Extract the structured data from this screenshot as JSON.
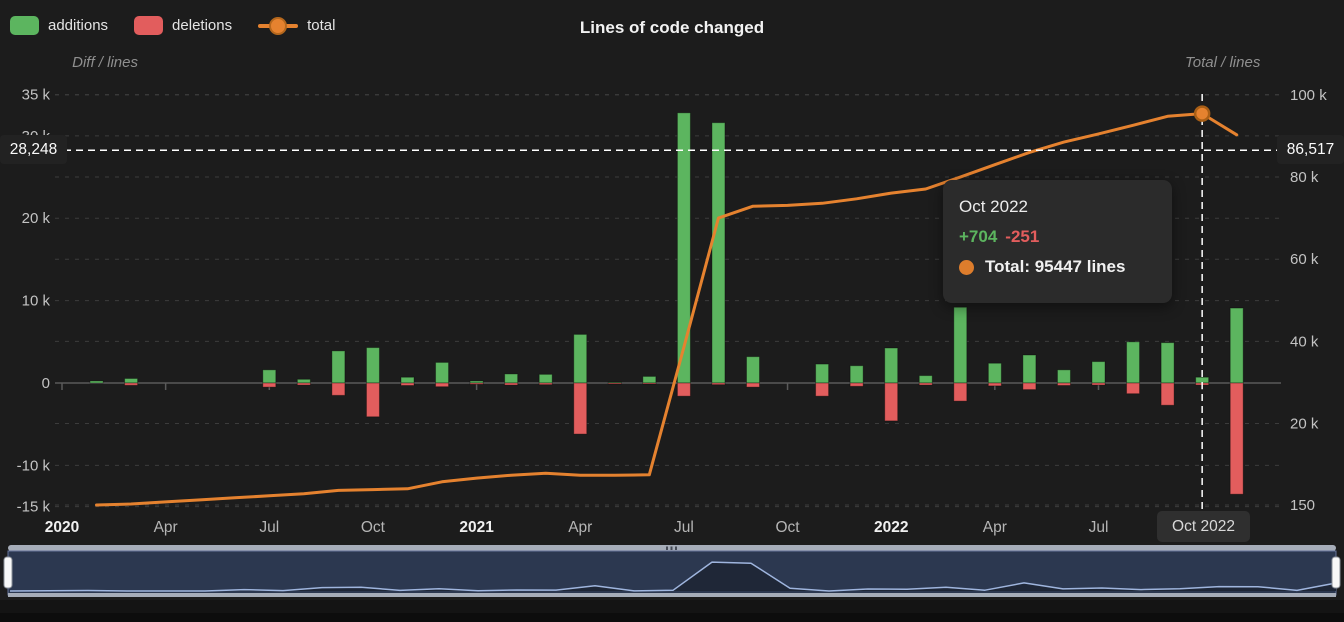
{
  "header": {
    "title": "Lines of code changed",
    "legend": [
      {
        "label": "additions",
        "icon": "green-swatch",
        "color": "#5cb55f"
      },
      {
        "label": "deletions",
        "icon": "red-swatch",
        "color": "#e25d5d"
      },
      {
        "label": "total",
        "icon": "orange-line-dot",
        "color": "#e5822f"
      }
    ]
  },
  "axes": {
    "left": {
      "title": "Diff / lines",
      "ticks": [
        {
          "value": 35000,
          "label": "35 k"
        },
        {
          "value": 30000,
          "label": "30 k"
        },
        {
          "value": 20000,
          "label": "20 k"
        },
        {
          "value": 10000,
          "label": "10 k"
        },
        {
          "value": 0,
          "label": "0"
        },
        {
          "value": -10000,
          "label": "-10 k"
        },
        {
          "value": -15000,
          "label": "-15 k"
        }
      ]
    },
    "right": {
      "title": "Total / lines",
      "ticks": [
        {
          "value": 100000,
          "label": "100 k"
        },
        {
          "value": 80000,
          "label": "80 k"
        },
        {
          "value": 60000,
          "label": "60 k"
        },
        {
          "value": 40000,
          "label": "40 k"
        },
        {
          "value": 20000,
          "label": "20 k"
        },
        {
          "value": 150,
          "label": "150"
        }
      ]
    },
    "x": {
      "ticks": [
        {
          "index": 0,
          "label": "2020",
          "bold": true
        },
        {
          "index": 3,
          "label": "Apr"
        },
        {
          "index": 6,
          "label": "Jul"
        },
        {
          "index": 9,
          "label": "Oct"
        },
        {
          "index": 12,
          "label": "2021",
          "bold": true
        },
        {
          "index": 15,
          "label": "Apr"
        },
        {
          "index": 18,
          "label": "Jul"
        },
        {
          "index": 21,
          "label": "Oct"
        },
        {
          "index": 24,
          "label": "2022",
          "bold": true
        },
        {
          "index": 27,
          "label": "Apr"
        },
        {
          "index": 30,
          "label": "Jul"
        },
        {
          "index": 33,
          "label": "Oct 2022",
          "boxed": true
        }
      ]
    }
  },
  "chart_data": {
    "type": "bar+line",
    "title": "Lines of code changed",
    "ylabel_left": "Diff / lines",
    "ylabel_right": "Total / lines",
    "left_axis_range": [
      -15000,
      35000
    ],
    "right_axis_range": [
      150,
      100000
    ],
    "grid": "dashed-horizontal",
    "categories": [
      "Jan 2020",
      "Feb 2020",
      "Mar 2020",
      "Apr 2020",
      "May 2020",
      "Jun 2020",
      "Jul 2020",
      "Aug 2020",
      "Sep 2020",
      "Oct 2020",
      "Nov 2020",
      "Dec 2020",
      "Jan 2021",
      "Feb 2021",
      "Mar 2021",
      "Apr 2021",
      "May 2021",
      "Jun 2021",
      "Jul 2021",
      "Aug 2021",
      "Sep 2021",
      "Oct 2021",
      "Nov 2021",
      "Dec 2021",
      "Jan 2022",
      "Feb 2022",
      "Mar 2022",
      "Apr 2022",
      "May 2022",
      "Jun 2022",
      "Jul 2022",
      "Aug 2022",
      "Sep 2022",
      "Oct 2022",
      "Nov 2022"
    ],
    "series": [
      {
        "name": "additions",
        "type": "bar",
        "axis": "left",
        "color": "#5cb55f",
        "values": [
          0,
          250,
          550,
          0,
          0,
          0,
          1600,
          450,
          3900,
          4300,
          700,
          2500,
          250,
          1100,
          1050,
          5900,
          100,
          800,
          32800,
          31600,
          3200,
          0,
          2300,
          2100,
          4250,
          900,
          9200,
          2400,
          3400,
          1600,
          2600,
          5000,
          4900,
          704,
          9100
        ]
      },
      {
        "name": "deletions",
        "type": "bar",
        "axis": "left",
        "color": "#e25d5d",
        "values": [
          0,
          0,
          -280,
          0,
          0,
          0,
          -500,
          -250,
          -1500,
          -4100,
          -300,
          -450,
          -150,
          -250,
          -200,
          -6200,
          -50,
          -100,
          -1600,
          -200,
          -500,
          0,
          -1600,
          -400,
          -4600,
          -250,
          -2200,
          -350,
          -800,
          -300,
          -250,
          -1300,
          -2700,
          -251,
          -13500
        ]
      },
      {
        "name": "total",
        "type": "line",
        "axis": "right",
        "color": "#e5822f",
        "values": [
          null,
          150,
          400,
          900,
          1400,
          1900,
          2400,
          2900,
          3700,
          3900,
          4100,
          5800,
          6700,
          7400,
          7900,
          7400,
          7400,
          7500,
          38600,
          70000,
          72900,
          73100,
          73600,
          74700,
          76100,
          77100,
          80000,
          83000,
          86000,
          88500,
          90500,
          92600,
          94800,
          95447,
          90300
        ]
      }
    ]
  },
  "crosshair": {
    "month_index": 33,
    "left_label": "28,248",
    "right_label": "86,517",
    "right_value": 86517,
    "left_value": 28248
  },
  "tooltip": {
    "title": "Oct 2022",
    "additions": "+704",
    "deletions": "-251",
    "total": "Total: 95447 lines"
  },
  "x_highlight_label": "Oct 2022",
  "navigator": {
    "type": "range-slider",
    "selection": "full-range",
    "shadow_source": "additions"
  },
  "colors": {
    "background": "#1c1c1c",
    "additions": "#5cb55f",
    "deletions": "#e25d5d",
    "total": "#e5822f",
    "gridline": "#3c3c3c",
    "crosshair": "#ffffff",
    "navigator_fill": "#2c3850",
    "navigator_rail": "#a6adb9"
  }
}
